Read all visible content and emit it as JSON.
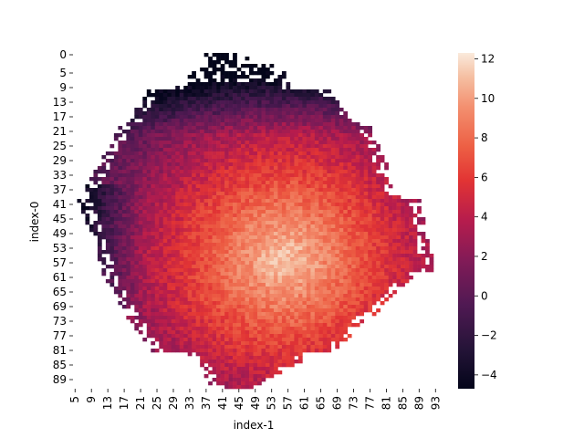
{
  "chart_data": {
    "type": "heatmap",
    "title": "",
    "xlabel": "index-1",
    "ylabel": "index-0",
    "x_tick_labels": [
      "5",
      "9",
      "13",
      "17",
      "21",
      "25",
      "29",
      "33",
      "37",
      "41",
      "45",
      "49",
      "53",
      "57",
      "61",
      "65",
      "69",
      "73",
      "77",
      "81",
      "85",
      "89",
      "93"
    ],
    "y_tick_labels": [
      "0",
      "5",
      "9",
      "13",
      "17",
      "21",
      "25",
      "29",
      "33",
      "37",
      "41",
      "45",
      "49",
      "53",
      "57",
      "61",
      "65",
      "69",
      "73",
      "77",
      "81",
      "85",
      "89"
    ],
    "x_range": [
      5,
      95
    ],
    "y_range": [
      0,
      92
    ],
    "colorbar": {
      "colormap": "rocket",
      "vmin": -4.7,
      "vmax": 12.3,
      "tick_labels": [
        "12",
        "10",
        "8",
        "6",
        "4",
        "2",
        "0",
        "−2",
        "−4"
      ],
      "tick_values": [
        12,
        10,
        8,
        6,
        4,
        2,
        0,
        -2,
        -4
      ]
    },
    "distribution": {
      "description_center_col": 56,
      "description_center_row": 56,
      "peak_value": 11.5
    }
  }
}
